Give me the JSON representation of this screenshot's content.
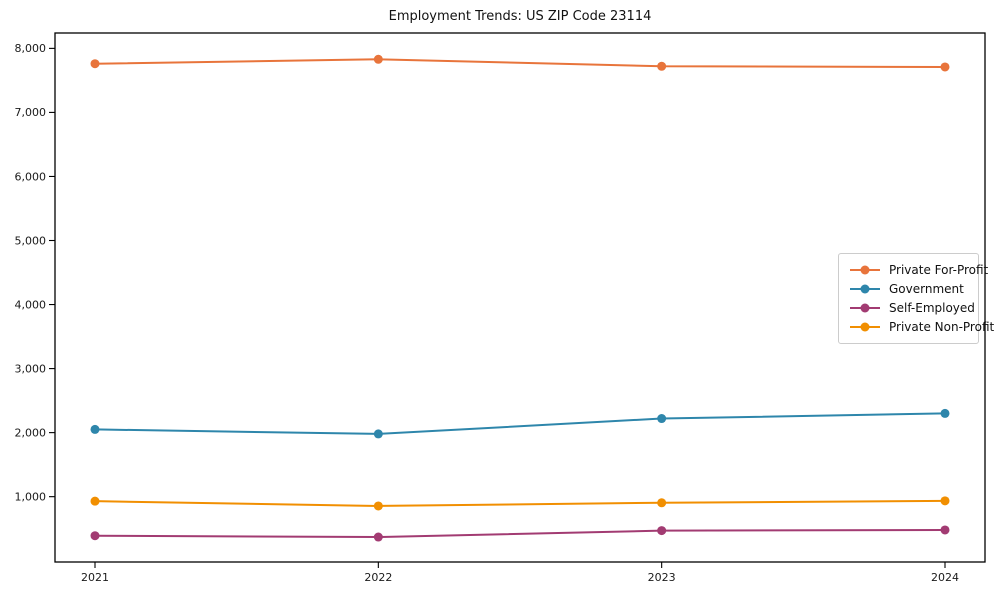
{
  "chart_data": {
    "type": "line",
    "title": "Employment Trends: US ZIP Code 23114",
    "xlabel": "",
    "ylabel": "",
    "categories": [
      "2021",
      "2022",
      "2023",
      "2024"
    ],
    "series": [
      {
        "name": "Private For-Profit",
        "color": "#E8743B",
        "values": [
          7760,
          7830,
          7720,
          7710
        ]
      },
      {
        "name": "Government",
        "color": "#2E86AB",
        "values": [
          2050,
          1980,
          2220,
          2300
        ]
      },
      {
        "name": "Self-Employed",
        "color": "#A23B72",
        "values": [
          390,
          370,
          470,
          480
        ]
      },
      {
        "name": "Private Non-Profit",
        "color": "#F18F01",
        "values": [
          930,
          855,
          905,
          935
        ]
      }
    ],
    "yticks": [
      1000,
      2000,
      3000,
      4000,
      5000,
      6000,
      7000,
      8000
    ],
    "ylim": [
      -20,
      8240
    ],
    "grid": false,
    "legend_position": "right",
    "axis_color": "#000000",
    "tick_label_color": "#1a1a1a",
    "background_color": "#ffffff"
  }
}
